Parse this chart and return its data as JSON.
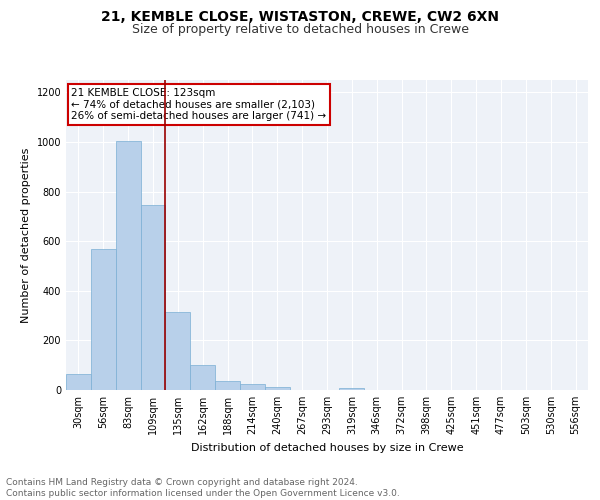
{
  "title1": "21, KEMBLE CLOSE, WISTASTON, CREWE, CW2 6XN",
  "title2": "Size of property relative to detached houses in Crewe",
  "xlabel": "Distribution of detached houses by size in Crewe",
  "ylabel": "Number of detached properties",
  "bar_labels": [
    "30sqm",
    "56sqm",
    "83sqm",
    "109sqm",
    "135sqm",
    "162sqm",
    "188sqm",
    "214sqm",
    "240sqm",
    "267sqm",
    "293sqm",
    "319sqm",
    "346sqm",
    "372sqm",
    "398sqm",
    "425sqm",
    "451sqm",
    "477sqm",
    "503sqm",
    "530sqm",
    "556sqm"
  ],
  "bar_values": [
    65,
    570,
    1005,
    745,
    315,
    100,
    38,
    25,
    12,
    0,
    0,
    10,
    0,
    0,
    0,
    0,
    0,
    0,
    0,
    0,
    0
  ],
  "bar_color": "#b8d0ea",
  "bar_edge_color": "#7aafd4",
  "vline_x": 3.5,
  "annotation_text": "21 KEMBLE CLOSE: 123sqm\n← 74% of detached houses are smaller (2,103)\n26% of semi-detached houses are larger (741) →",
  "annotation_box_color": "#ffffff",
  "annotation_box_edge": "#cc0000",
  "footnote": "Contains HM Land Registry data © Crown copyright and database right 2024.\nContains public sector information licensed under the Open Government Licence v3.0.",
  "ylim": [
    0,
    1250
  ],
  "yticks": [
    0,
    200,
    400,
    600,
    800,
    1000,
    1200
  ],
  "background_color": "#eef2f8",
  "grid_color": "#ffffff",
  "title1_fontsize": 10,
  "title2_fontsize": 9,
  "xlabel_fontsize": 8,
  "ylabel_fontsize": 8,
  "tick_fontsize": 7,
  "annotation_fontsize": 7.5,
  "footnote_fontsize": 6.5
}
